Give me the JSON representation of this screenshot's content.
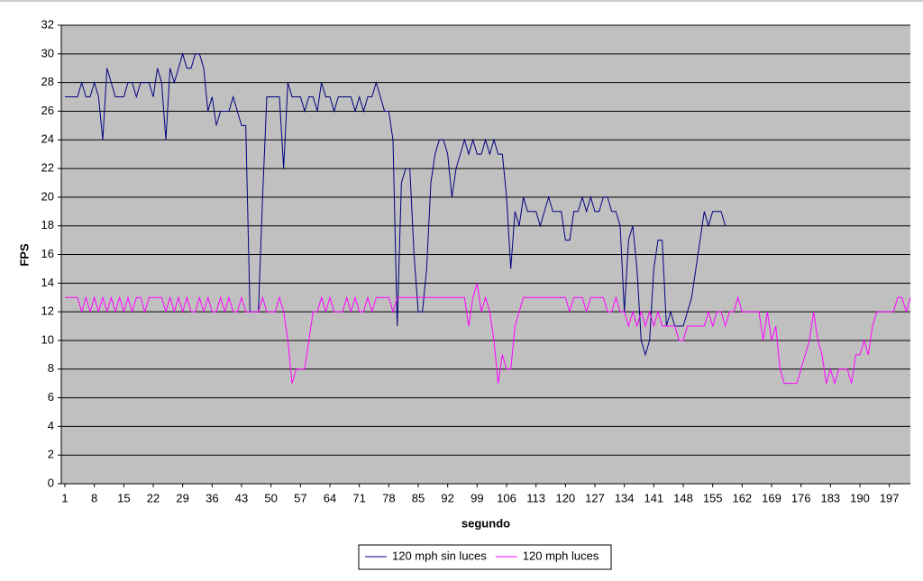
{
  "chart_data": {
    "type": "line",
    "x_title": "segundo",
    "y_title": "FPS",
    "x": [
      1,
      2,
      3,
      4,
      5,
      6,
      7,
      8,
      9,
      10,
      11,
      12,
      13,
      14,
      15,
      16,
      17,
      18,
      19,
      20,
      21,
      22,
      23,
      24,
      25,
      26,
      27,
      28,
      29,
      30,
      31,
      32,
      33,
      34,
      35,
      36,
      37,
      38,
      39,
      40,
      41,
      42,
      43,
      44,
      45,
      46,
      47,
      48,
      49,
      50,
      51,
      52,
      53,
      54,
      55,
      56,
      57,
      58,
      59,
      60,
      61,
      62,
      63,
      64,
      65,
      66,
      67,
      68,
      69,
      70,
      71,
      72,
      73,
      74,
      75,
      76,
      77,
      78,
      79,
      80,
      81,
      82,
      83,
      84,
      85,
      86,
      87,
      88,
      89,
      90,
      91,
      92,
      93,
      94,
      95,
      96,
      97,
      98,
      99,
      100,
      101,
      102,
      103,
      104,
      105,
      106,
      107,
      108,
      109,
      110,
      111,
      112,
      113,
      114,
      115,
      116,
      117,
      118,
      119,
      120,
      121,
      122,
      123,
      124,
      125,
      126,
      127,
      128,
      129,
      130,
      131,
      132,
      133,
      134,
      135,
      136,
      137,
      138,
      139,
      140,
      141,
      142,
      143,
      144,
      145,
      146,
      147,
      148,
      149,
      150,
      151,
      152,
      153,
      154,
      155,
      156,
      157,
      158,
      159,
      160,
      161,
      162,
      163,
      164,
      165,
      166,
      167,
      168,
      169,
      170,
      171,
      172,
      173,
      174,
      175,
      176,
      177,
      178,
      179,
      180,
      181,
      182,
      183,
      184,
      185,
      186,
      187,
      188,
      189,
      190,
      191,
      192,
      193,
      194,
      195,
      196,
      197,
      198,
      199,
      200,
      201,
      202
    ],
    "series": [
      {
        "name": "120 mph sin luces",
        "color": "#000080",
        "values": [
          27,
          27,
          27,
          27,
          28,
          27,
          27,
          28,
          27,
          24,
          29,
          28,
          27,
          27,
          27,
          28,
          28,
          27,
          28,
          28,
          28,
          27,
          29,
          28,
          24,
          29,
          28,
          29,
          30,
          29,
          29,
          30,
          30,
          29,
          26,
          27,
          25,
          26,
          26,
          26,
          27,
          26,
          25,
          25,
          12,
          12,
          12,
          20,
          27,
          27,
          27,
          27,
          22,
          28,
          27,
          27,
          27,
          26,
          27,
          27,
          26,
          28,
          27,
          27,
          26,
          27,
          27,
          27,
          27,
          26,
          27,
          26,
          27,
          27,
          28,
          27,
          26,
          26,
          24,
          11,
          21,
          22,
          22,
          16,
          12,
          12,
          15,
          21,
          23,
          24,
          24,
          23,
          20,
          22,
          23,
          24,
          23,
          24,
          23,
          23,
          24,
          23,
          24,
          23,
          23,
          20,
          15,
          19,
          18,
          20,
          19,
          19,
          19,
          18,
          19,
          20,
          19,
          19,
          19,
          17,
          17,
          19,
          19,
          20,
          19,
          20,
          19,
          19,
          20,
          20,
          19,
          19,
          18,
          12,
          17,
          18,
          15,
          10,
          9,
          10,
          15,
          17,
          17,
          11,
          12,
          11,
          11,
          11,
          12,
          13,
          15,
          17,
          19,
          18,
          19,
          19,
          19,
          18,
          null,
          null,
          null,
          null,
          null,
          null,
          null,
          null,
          null,
          null,
          null,
          null,
          null,
          null,
          null,
          null,
          null,
          null,
          null,
          null,
          null,
          null,
          null,
          null,
          null,
          null,
          null,
          null,
          null,
          null,
          null,
          null,
          null,
          null,
          null,
          null,
          null,
          null,
          null,
          null,
          null,
          null,
          null,
          null
        ]
      },
      {
        "name": "120 mph luces",
        "color": "#ff00ff",
        "values": [
          13,
          13,
          13,
          13,
          12,
          13,
          12,
          13,
          12,
          13,
          12,
          13,
          12,
          13,
          12,
          13,
          12,
          13,
          13,
          12,
          13,
          13,
          13,
          13,
          12,
          13,
          12,
          13,
          12,
          13,
          12,
          12,
          13,
          12,
          13,
          12,
          12,
          13,
          12,
          13,
          12,
          12,
          13,
          12,
          12,
          12,
          12,
          13,
          12,
          12,
          12,
          13,
          12,
          10,
          7,
          8,
          8,
          8,
          10,
          12,
          12,
          13,
          12,
          13,
          12,
          12,
          12,
          13,
          12,
          13,
          12,
          12,
          13,
          12,
          13,
          13,
          13,
          13,
          12,
          13,
          13,
          13,
          13,
          13,
          13,
          13,
          13,
          13,
          13,
          13,
          13,
          13,
          13,
          13,
          13,
          13,
          11,
          13,
          14,
          12,
          13,
          12,
          10,
          7,
          9,
          8,
          8,
          11,
          12,
          13,
          13,
          13,
          13,
          13,
          13,
          13,
          13,
          13,
          13,
          13,
          12,
          13,
          13,
          13,
          12,
          13,
          13,
          13,
          13,
          12,
          12,
          13,
          12,
          12,
          11,
          12,
          11,
          12,
          11,
          12,
          11,
          12,
          11,
          11,
          11,
          11,
          10,
          10,
          11,
          11,
          11,
          11,
          11,
          12,
          11,
          12,
          12,
          11,
          12,
          12,
          13,
          12,
          12,
          12,
          12,
          12,
          10,
          12,
          10,
          11,
          8,
          7,
          7,
          7,
          7,
          8,
          9,
          10,
          12,
          10,
          9,
          7,
          8,
          7,
          8,
          8,
          8,
          7,
          9,
          9,
          10,
          9,
          11,
          12,
          12,
          12,
          12,
          12,
          13,
          13,
          12,
          13
        ]
      }
    ],
    "xlim": [
      1,
      202
    ],
    "xticks": [
      1,
      8,
      15,
      22,
      29,
      36,
      43,
      50,
      57,
      64,
      71,
      78,
      85,
      92,
      99,
      106,
      113,
      120,
      127,
      134,
      141,
      148,
      155,
      162,
      169,
      176,
      183,
      190,
      197
    ],
    "ylim": [
      0,
      32
    ],
    "yticks": [
      0,
      2,
      4,
      6,
      8,
      10,
      12,
      14,
      16,
      18,
      20,
      22,
      24,
      26,
      28,
      30,
      32
    ],
    "grid": true,
    "legend": "bottom"
  }
}
